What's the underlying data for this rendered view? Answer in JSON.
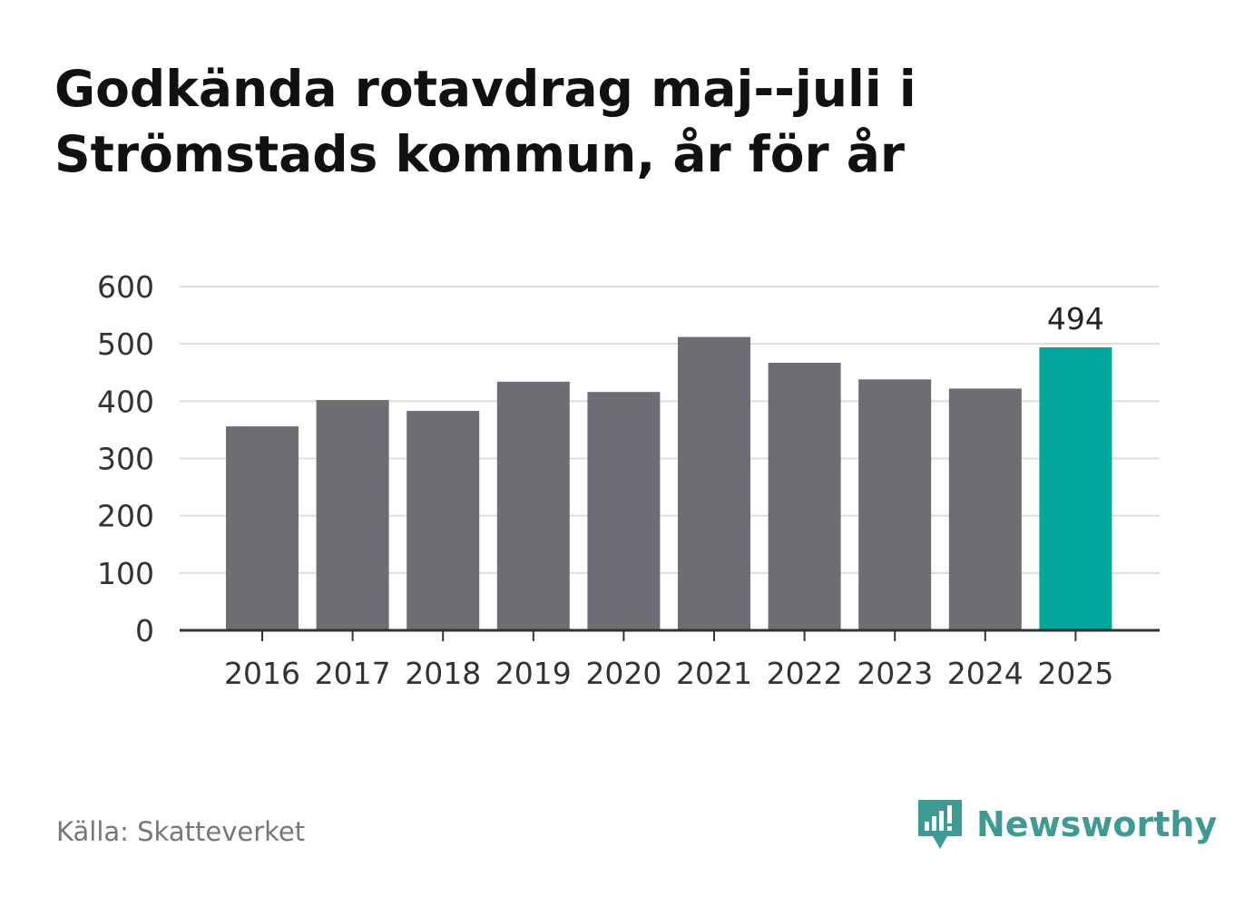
{
  "title_lines": [
    "Godkända rotavdrag maj--juli i",
    "Strömstads kommun, år för år"
  ],
  "source": "Källa: Skatteverket",
  "brand": {
    "name": "Newsworthy",
    "icon": "newsworthy-logo-icon",
    "color": "#3e9a92"
  },
  "colors": {
    "bar": "#6e6d73",
    "highlight": "#00a79b",
    "grid": "#dddddd",
    "axis": "#333333"
  },
  "chart_data": {
    "type": "bar",
    "categories": [
      "2016",
      "2017",
      "2018",
      "2019",
      "2020",
      "2021",
      "2022",
      "2023",
      "2024",
      "2025"
    ],
    "values": [
      356,
      402,
      383,
      434,
      416,
      512,
      467,
      438,
      422,
      494
    ],
    "highlight_index": 9,
    "data_labels": [
      {
        "index": 9,
        "text": "494"
      }
    ],
    "yticks": [
      0,
      100,
      200,
      300,
      400,
      500,
      600
    ],
    "ylim": [
      0,
      600
    ],
    "xlabel": "",
    "ylabel": "",
    "grid": true,
    "legend": "none"
  }
}
